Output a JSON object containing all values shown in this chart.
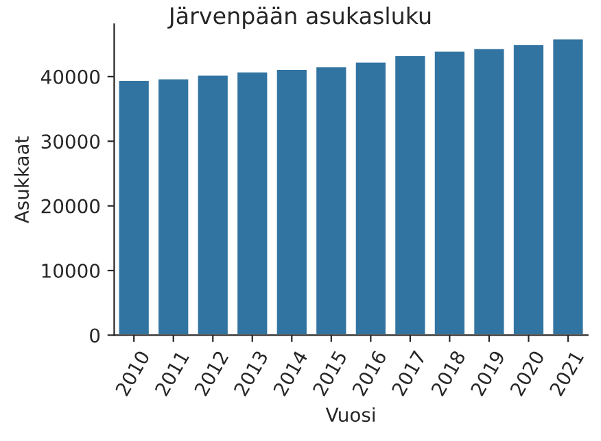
{
  "chart_data": {
    "type": "bar",
    "title": "Järvenpään asukasluku",
    "xlabel": "Vuosi",
    "ylabel": "Asukkaat",
    "categories": [
      "2010",
      "2011",
      "2012",
      "2013",
      "2014",
      "2015",
      "2016",
      "2017",
      "2018",
      "2019",
      "2020",
      "2021"
    ],
    "values": [
      39500,
      39700,
      40300,
      40800,
      41200,
      41600,
      42300,
      43300,
      44000,
      44400,
      45000,
      45900
    ],
    "color": "#3274a1",
    "ylim": [
      0,
      48100
    ],
    "yticks": [
      0,
      10000,
      20000,
      30000,
      40000
    ],
    "grid": false,
    "legend": false
  }
}
